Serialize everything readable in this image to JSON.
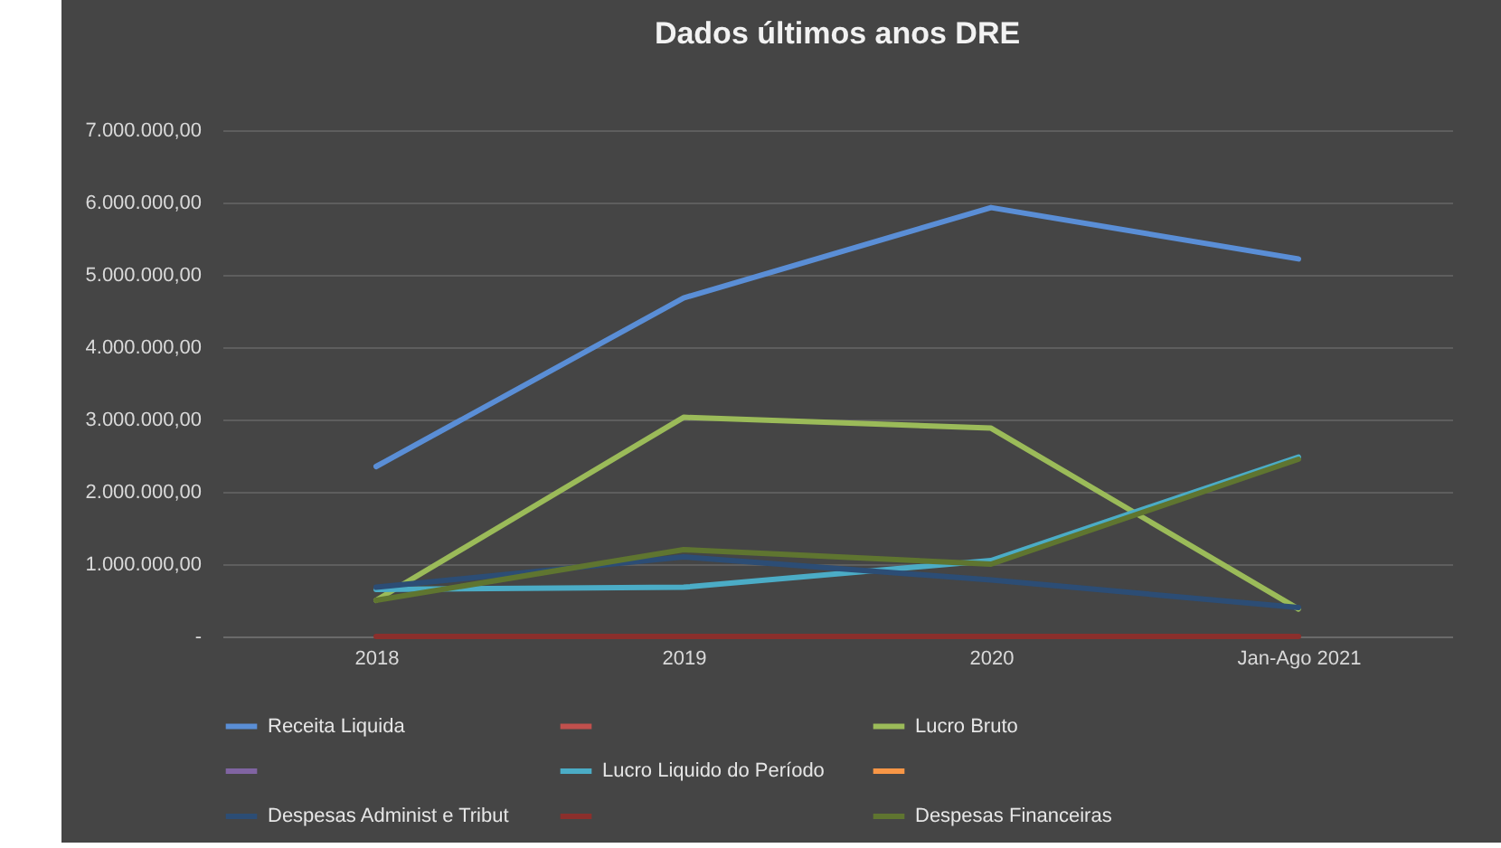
{
  "chart_data": {
    "type": "line",
    "title": "Dados últimos anos DRE",
    "categories": [
      "2018",
      "2019",
      "2020",
      "Jan-Ago 2021"
    ],
    "series": [
      {
        "name": "Receita Liquida",
        "color": "#5a8ed6",
        "values": [
          2350000,
          4680000,
          5930000,
          5220000
        ]
      },
      {
        "color": "#c0504d",
        "values": [
          null,
          null,
          null,
          null
        ]
      },
      {
        "name": "Lucro Bruto",
        "color": "#9bbb59",
        "values": [
          500000,
          3030000,
          2880000,
          380000
        ]
      },
      {
        "color": "#8064a2",
        "values": [
          null,
          null,
          null,
          null
        ]
      },
      {
        "name": "Lucro Liquido do Período",
        "color": "#4bacc6",
        "values": [
          650000,
          680000,
          1050000,
          2480000
        ]
      },
      {
        "color": "#f79646",
        "values": [
          null,
          null,
          null,
          null
        ]
      },
      {
        "name": "Despesas Administ e Tribut",
        "color": "#2c4d75",
        "values": [
          680000,
          1100000,
          780000,
          400000
        ]
      },
      {
        "color": "#8b2f2c",
        "values": [
          0,
          0,
          0,
          0
        ]
      },
      {
        "name": "Despesas Financeiras",
        "color": "#5f7530",
        "values": [
          500000,
          1200000,
          1000000,
          2450000
        ]
      }
    ],
    "ylim": [
      0,
      7000000
    ],
    "yticks": [
      {
        "value": 0,
        "label": "-"
      },
      {
        "value": 1000000,
        "label": "1.000.000,00"
      },
      {
        "value": 2000000,
        "label": "2.000.000,00"
      },
      {
        "value": 3000000,
        "label": "3.000.000,00"
      },
      {
        "value": 4000000,
        "label": "4.000.000,00"
      },
      {
        "value": 5000000,
        "label": "5.000.000,00"
      },
      {
        "value": 6000000,
        "label": "6.000.000,00"
      },
      {
        "value": 7000000,
        "label": "7.000.000,00"
      }
    ],
    "grid": "y",
    "legend": "bottom"
  }
}
